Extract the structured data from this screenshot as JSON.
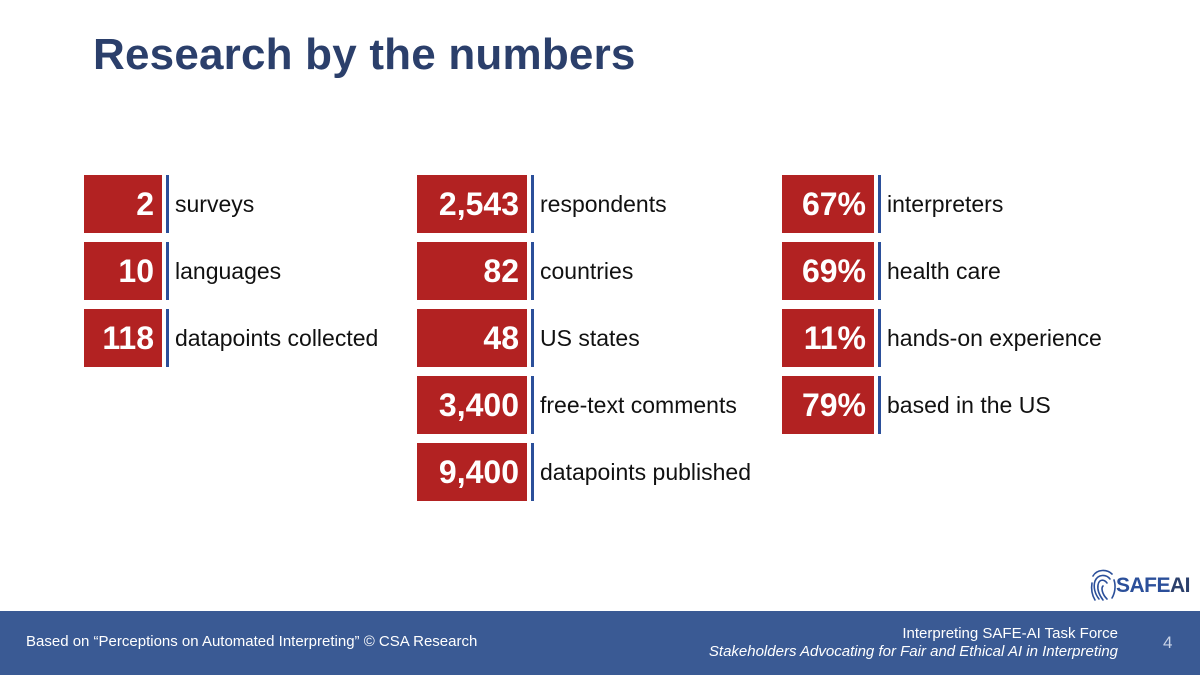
{
  "title": "Research by the numbers",
  "columns": [
    [
      {
        "value": "2",
        "label": "surveys"
      },
      {
        "value": "10",
        "label": "languages"
      },
      {
        "value": "118",
        "label": "datapoints collected"
      }
    ],
    [
      {
        "value": "2,543",
        "label": "respondents"
      },
      {
        "value": "82",
        "label": "countries"
      },
      {
        "value": "48",
        "label": "US states"
      },
      {
        "value": "3,400",
        "label": "free-text comments"
      },
      {
        "value": "9,400",
        "label": "datapoints published"
      }
    ],
    [
      {
        "value": "67%",
        "label": "interpreters"
      },
      {
        "value": "69%",
        "label": "health care"
      },
      {
        "value": "11%",
        "label": "hands-on experience"
      },
      {
        "value": "79%",
        "label": "based in the US"
      }
    ]
  ],
  "logo": {
    "part1": "SAFE",
    "part2": "AI",
    "icon": "fingerprint-icon"
  },
  "footer": {
    "source": "Based on “Perceptions on Automated Interpreting” © CSA Research",
    "org_line1": "Interpreting SAFE-AI Task Force",
    "org_line2": "Stakeholders Advocating for Fair and Ethical AI in Interpreting",
    "page": "4"
  },
  "colors": {
    "accent": "#b22222",
    "title": "#2b3f6b",
    "divider": "#2b4f9a",
    "footer": "#3a5a94"
  }
}
